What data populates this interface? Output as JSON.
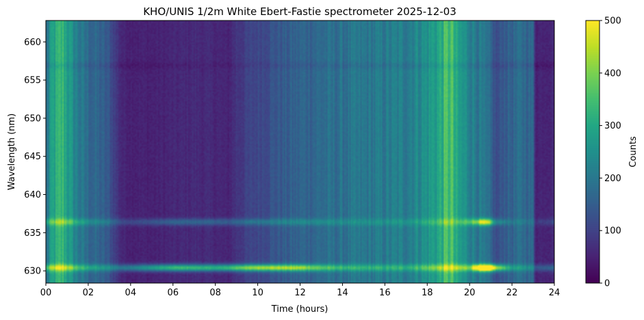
{
  "chart_data": {
    "type": "heatmap",
    "title": "KHO/UNIS 1/2m White Ebert-Fastie spectrometer 2025-12-03",
    "xlabel": "Time (hours)",
    "ylabel": "Wavelength (nm)",
    "xlim": [
      0,
      24
    ],
    "ylim": [
      628.4,
      662.8
    ],
    "x_ticks": [
      0,
      2,
      4,
      6,
      8,
      10,
      12,
      14,
      16,
      18,
      20,
      22,
      24
    ],
    "x_tick_labels": [
      "00",
      "02",
      "04",
      "06",
      "08",
      "10",
      "12",
      "14",
      "16",
      "18",
      "20",
      "22",
      "24"
    ],
    "y_ticks": [
      630,
      635,
      640,
      645,
      650,
      655,
      660
    ],
    "y_tick_labels": [
      "630",
      "635",
      "640",
      "645",
      "650",
      "655",
      "660"
    ],
    "colormap": "viridis",
    "colorbar": {
      "label": "Counts",
      "range": [
        0,
        500
      ],
      "ticks": [
        0,
        100,
        200,
        300,
        400,
        500
      ],
      "tick_labels": [
        "0",
        "100",
        "200",
        "300",
        "400",
        "500"
      ]
    },
    "background_profile": {
      "hours": [
        0,
        0.3,
        0.8,
        1.2,
        1.6,
        2.0,
        2.6,
        3.0,
        3.4,
        3.6,
        4.0,
        5.0,
        6.0,
        7.0,
        8.0,
        8.6,
        9.0,
        10.0,
        11.0,
        12.0,
        13.0,
        14.0,
        15.0,
        16.0,
        17.0,
        17.5,
        18.0,
        18.6,
        18.9,
        19.1,
        19.4,
        20.0,
        20.5,
        21.0,
        21.3,
        21.6,
        22.0,
        22.5,
        23.0,
        23.1,
        23.5,
        24.0
      ],
      "counts": [
        170,
        280,
        330,
        250,
        200,
        175,
        155,
        130,
        75,
        55,
        50,
        48,
        55,
        62,
        58,
        50,
        80,
        110,
        140,
        160,
        175,
        185,
        195,
        205,
        215,
        235,
        255,
        300,
        340,
        360,
        280,
        230,
        200,
        160,
        110,
        150,
        160,
        180,
        160,
        50,
        55,
        60
      ]
    },
    "emission_lines": [
      {
        "wavelength_nm": 630.4,
        "hours": [
          0,
          0.8,
          1.6,
          2.5,
          3.5,
          4.5,
          5.5,
          6.2,
          7.0,
          8.0,
          9.0,
          10.0,
          11.0,
          12.0,
          13.0,
          14.0,
          15.0,
          16.0,
          17.0,
          18.0,
          19.0,
          20.0,
          20.4,
          20.7,
          21.0,
          21.3,
          22.0,
          23.0,
          23.5,
          24.0
        ],
        "peak": [
          160,
          180,
          150,
          120,
          140,
          200,
          260,
          290,
          280,
          260,
          300,
          330,
          310,
          280,
          200,
          150,
          130,
          120,
          110,
          130,
          150,
          180,
          420,
          500,
          480,
          300,
          120,
          80,
          100,
          110
        ]
      },
      {
        "wavelength_nm": 636.4,
        "hours": [
          0,
          1,
          2,
          4,
          6,
          8,
          10,
          12,
          14,
          16,
          18,
          19.5,
          20.3,
          20.6,
          20.9,
          21.2,
          22,
          23,
          24
        ],
        "peak": [
          100,
          120,
          80,
          60,
          110,
          100,
          90,
          80,
          60,
          50,
          60,
          80,
          200,
          300,
          290,
          120,
          40,
          30,
          60
        ]
      },
      {
        "wavelength_nm": 656.9,
        "hours": [
          0,
          4,
          8,
          12,
          16,
          20,
          24
        ],
        "peak": [
          -25,
          -15,
          -10,
          -15,
          -20,
          -20,
          -20
        ]
      }
    ]
  }
}
